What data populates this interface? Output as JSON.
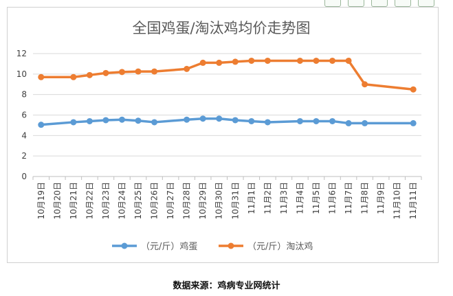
{
  "chart_data": {
    "type": "line",
    "title": "全国鸡蛋/淘汰鸡均价走势图",
    "xlabel": "",
    "ylabel": "",
    "ylim": [
      0,
      12
    ],
    "yticks": [
      0,
      2,
      4,
      6,
      8,
      10,
      12
    ],
    "grid": true,
    "legend_position": "bottom",
    "categories": [
      "10月19日",
      "10月20日",
      "10月21日",
      "10月22日",
      "10月23日",
      "10月24日",
      "10月25日",
      "10月26日",
      "10月27日",
      "10月28日",
      "10月29日",
      "10月30日",
      "10月31日",
      "11月1日",
      "11月2日",
      "11月3日",
      "11月4日",
      "11月5日",
      "11月6日",
      "11月7日",
      "11月8日",
      "11月9日",
      "11月10日",
      "11月11日"
    ],
    "series": [
      {
        "name": "（元/斤）鸡蛋",
        "color": "#5b9bd5",
        "values": [
          5.05,
          null,
          5.3,
          5.4,
          5.5,
          5.55,
          5.45,
          5.3,
          null,
          5.55,
          5.65,
          5.65,
          5.5,
          5.4,
          5.3,
          null,
          5.4,
          5.4,
          5.4,
          5.2,
          5.2,
          null,
          null,
          5.2
        ]
      },
      {
        "name": "（元/斤）淘汰鸡",
        "color": "#ed7d31",
        "values": [
          9.7,
          null,
          9.7,
          9.9,
          10.1,
          10.2,
          10.25,
          10.25,
          null,
          10.5,
          11.1,
          11.1,
          11.2,
          11.3,
          11.3,
          null,
          11.3,
          11.3,
          11.3,
          11.3,
          9.0,
          null,
          null,
          8.5
        ]
      }
    ]
  },
  "source_note": "数据来源：鸡病专业网统计"
}
